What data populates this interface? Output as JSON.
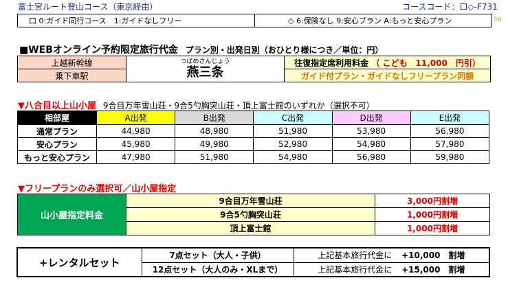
{
  "header": {
    "title": "富士宮ルート登山コース（東京経由）",
    "code": "コースコード：口◇-F731",
    "left_option": "口 0:ガイド同行コース　1:ガイドなしフリー",
    "right_option": "◇ 6:保険なし 9:安心プラン A:もっと安心プラン",
    "page_num": "56"
  },
  "fare": {
    "heading": "■WEBオンライン予約限定旅行代金",
    "heading_sub": "プラン別・出発日別（おひとり様につき／単位：円）",
    "line": "上越新幹線",
    "station_label": "乗下車駅",
    "station_reading": "つばめさんじょう",
    "station_name": "燕三条",
    "reserved_label": "往復指定席利用料金",
    "child_fare": "（ こども　11,000　円引）",
    "same_price_note": "ガイド付プラン・ガイドなしフリープラン同額"
  },
  "hut": {
    "title": "▼八合目以上山小屋",
    "subtitle": "9合目万年雪山荘・9合5勺胸突山荘・頂上富士館のいずれか（選択不可）",
    "columns": [
      "相部屋",
      "A出発",
      "B出発",
      "C出発",
      "D出発",
      "E出発"
    ],
    "column_colors": [
      "#000000",
      "#ffff00",
      "#d9d9d9",
      "#ccffff",
      "#ffccff",
      "#ccffff"
    ],
    "rows": [
      {
        "plan": "通常プラン",
        "prices": [
          "44,980",
          "48,980",
          "51,980",
          "53,980",
          "56,980"
        ]
      },
      {
        "plan": "安心プラン",
        "prices": [
          "45,980",
          "49,980",
          "52,980",
          "54,980",
          "57,980"
        ]
      },
      {
        "plan": "もっと安心プラン",
        "prices": [
          "47,980",
          "51,980",
          "54,980",
          "56,980",
          "59,980"
        ]
      }
    ]
  },
  "free_plan": {
    "title": "▼フリープランのみ選択可／山小屋指定",
    "label": "山小屋指定料金",
    "items": [
      {
        "name": "9合目万年雪山荘",
        "surcharge": "3,000円割増"
      },
      {
        "name": "9合5勺胸突山荘",
        "surcharge": "1,000円割増"
      },
      {
        "name": "頂上富士館",
        "surcharge": "1,000円割増"
      }
    ]
  },
  "rental": {
    "label": "+レンタルセット",
    "items": [
      {
        "set": "7点セット（大人・子供）",
        "base": "上記基本旅行代金に",
        "price": "+10,000",
        "suffix": "割増"
      },
      {
        "set": "12点セット（大人のみ・XLまで）",
        "base": "上記基本旅行代金に",
        "price": "+15,000",
        "suffix": "割増"
      }
    ]
  },
  "colors": {
    "header_blue": "#1f2a9a",
    "accent_red": "#e00000",
    "green": "#00a651",
    "peach": "#fbd6c4",
    "light_yellow": "#ffffcc",
    "orange_text": "#e07000"
  }
}
